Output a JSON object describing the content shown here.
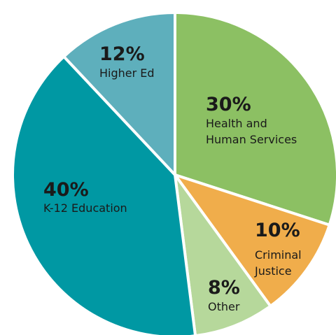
{
  "chart_data": {
    "type": "pie",
    "categories": [
      "Health and Human Services",
      "Criminal Justice",
      "Other",
      "K-12 Education",
      "Higher Ed"
    ],
    "values": [
      30,
      10,
      8,
      40,
      12
    ],
    "value_labels": [
      "30%",
      "10%",
      "8%",
      "40%",
      "12%"
    ],
    "colors": [
      "#8cc063",
      "#f0ad4b",
      "#b6d89b",
      "#0098a3",
      "#5eafbc"
    ]
  }
}
